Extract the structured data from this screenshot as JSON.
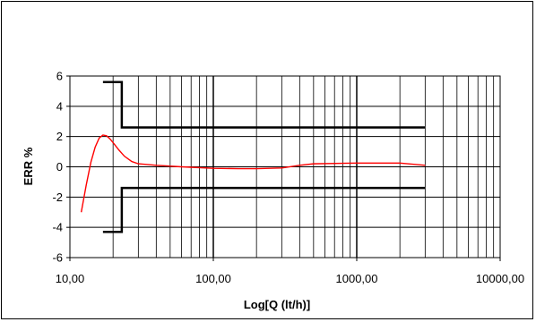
{
  "chart_data": {
    "type": "line",
    "title": "",
    "xlabel": "Log[Q (lt/h)]",
    "ylabel": "ERR %",
    "x_scale": "log",
    "xlim": [
      10,
      10000
    ],
    "ylim": [
      -6,
      6
    ],
    "x_tick_values": [
      10,
      100,
      1000,
      10000
    ],
    "x_tick_labels": [
      "10,00",
      "100,00",
      "1000,00",
      "10000,00"
    ],
    "y_tick_values": [
      6,
      4,
      2,
      0,
      -2,
      -4,
      -6
    ],
    "y_tick_labels": [
      "6",
      "4",
      "2",
      "0",
      "-2",
      "-4",
      "-6"
    ],
    "grid": true,
    "legend": "none",
    "series": [
      {
        "color": "#ff0000",
        "points": [
          [
            12,
            -3
          ],
          [
            13,
            -1.2
          ],
          [
            14,
            0.3
          ],
          [
            15,
            1.3
          ],
          [
            16,
            1.9
          ],
          [
            17,
            2.1
          ],
          [
            18,
            2.05
          ],
          [
            19,
            1.85
          ],
          [
            20,
            1.6
          ],
          [
            22,
            1.1
          ],
          [
            24,
            0.7
          ],
          [
            27,
            0.35
          ],
          [
            30,
            0.2
          ],
          [
            40,
            0.1
          ],
          [
            60,
            0.0
          ],
          [
            100,
            -0.1
          ],
          [
            150,
            -0.12
          ],
          [
            200,
            -0.12
          ],
          [
            300,
            -0.08
          ],
          [
            400,
            0.1
          ],
          [
            500,
            0.2
          ],
          [
            1000,
            0.25
          ],
          [
            2000,
            0.25
          ],
          [
            3000,
            0.1
          ]
        ]
      },
      {
        "color": "#000000",
        "points": [
          [
            17,
            5.6
          ],
          [
            23,
            5.6
          ],
          [
            23,
            2.6
          ],
          [
            3000,
            2.6
          ]
        ]
      },
      {
        "color": "#000000",
        "points": [
          [
            17,
            -4.3
          ],
          [
            23,
            -4.3
          ],
          [
            23,
            -1.4
          ],
          [
            3000,
            -1.4
          ]
        ]
      }
    ]
  }
}
